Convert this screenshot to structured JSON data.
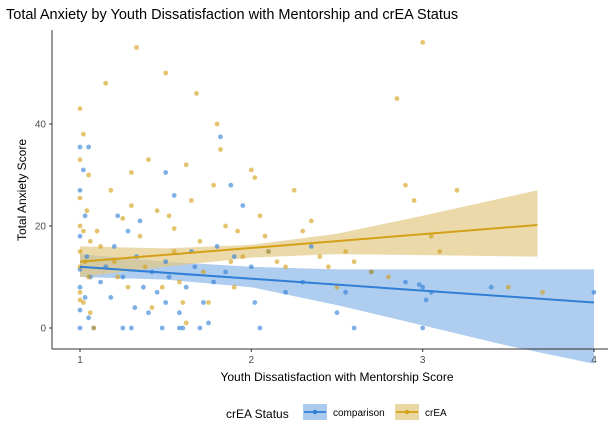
{
  "chart_data": {
    "type": "scatter",
    "title": "Total Anxiety by Youth Dissatisfaction with Mentorship and crEA Status",
    "xlabel": "Youth Dissatisfaction with Mentorship Score",
    "ylabel": "Total Anxiety Score",
    "xlim": [
      0.85,
      4.05
    ],
    "ylim": [
      -3,
      60
    ],
    "xticks": [
      1,
      2,
      3,
      4
    ],
    "yticks": [
      0,
      20,
      40
    ],
    "grid": false,
    "legend": {
      "title": "crEA Status",
      "position": "bottom"
    },
    "series": [
      {
        "name": "comparison",
        "color": "#2f7fd6",
        "points": [
          [
            1.0,
            35.5
          ],
          [
            1.02,
            31.0
          ],
          [
            1.05,
            35.5
          ],
          [
            1.0,
            27.0
          ],
          [
            1.03,
            22.0
          ],
          [
            1.0,
            18.0
          ],
          [
            1.04,
            14.0
          ],
          [
            1.0,
            11.5
          ],
          [
            1.06,
            10.0
          ],
          [
            1.0,
            8.0
          ],
          [
            1.03,
            6.0
          ],
          [
            1.0,
            3.5
          ],
          [
            1.05,
            2.0
          ],
          [
            1.0,
            0.0
          ],
          [
            1.08,
            0.0
          ],
          [
            1.12,
            9.0
          ],
          [
            1.15,
            12.0
          ],
          [
            1.18,
            6.0
          ],
          [
            1.2,
            16.0
          ],
          [
            1.22,
            22.0
          ],
          [
            1.25,
            10.0
          ],
          [
            1.28,
            19.0
          ],
          [
            1.3,
            0.0
          ],
          [
            1.32,
            4.0
          ],
          [
            1.33,
            14.0
          ],
          [
            1.35,
            21.0
          ],
          [
            1.37,
            8.0
          ],
          [
            1.4,
            3.0
          ],
          [
            1.42,
            11.0
          ],
          [
            1.45,
            7.0
          ],
          [
            1.48,
            0.0
          ],
          [
            1.5,
            5.0
          ],
          [
            1.52,
            10.0
          ],
          [
            1.5,
            13.0
          ],
          [
            1.55,
            26.0
          ],
          [
            1.58,
            3.0
          ],
          [
            1.6,
            0.0
          ],
          [
            1.62,
            8.0
          ],
          [
            1.65,
            15.0
          ],
          [
            1.67,
            12.0
          ],
          [
            1.7,
            0.0
          ],
          [
            1.72,
            5.0
          ],
          [
            1.75,
            1.0
          ],
          [
            1.78,
            9.0
          ],
          [
            1.8,
            16.0
          ],
          [
            1.82,
            37.5
          ],
          [
            1.85,
            11.0
          ],
          [
            1.88,
            28.0
          ],
          [
            1.9,
            14.0
          ],
          [
            1.95,
            24.0
          ],
          [
            2.0,
            12.0
          ],
          [
            2.02,
            5.0
          ],
          [
            2.05,
            0.0
          ],
          [
            2.1,
            15.0
          ],
          [
            2.2,
            7.0
          ],
          [
            2.3,
            9.0
          ],
          [
            2.35,
            16.0
          ],
          [
            2.5,
            3.0
          ],
          [
            2.55,
            7.0
          ],
          [
            2.6,
            0.0
          ],
          [
            2.7,
            11.0
          ],
          [
            2.9,
            9.0
          ],
          [
            3.0,
            8.0
          ],
          [
            3.02,
            5.5
          ],
          [
            3.05,
            7.0
          ],
          [
            3.0,
            0.0
          ],
          [
            2.98,
            8.5
          ],
          [
            3.4,
            8.0
          ],
          [
            4.0,
            7.0
          ],
          [
            1.5,
            30.5
          ],
          [
            1.58,
            0.0
          ],
          [
            1.25,
            0.0
          ]
        ],
        "fit": {
          "x": [
            1,
            4
          ],
          "y": [
            12.0,
            5.0
          ]
        },
        "band": {
          "x": [
            1,
            1.5,
            2,
            2.5,
            3,
            3.5,
            4
          ],
          "lower": [
            10.0,
            9.5,
            8.0,
            4.5,
            0.5,
            -3.5,
            -7.0
          ],
          "upper": [
            14.5,
            13.0,
            12.0,
            11.5,
            11.5,
            11.5,
            11.5
          ]
        }
      },
      {
        "name": "crEA",
        "color": "#d4a017",
        "points": [
          [
            1.0,
            43.0
          ],
          [
            1.02,
            38.0
          ],
          [
            1.0,
            33.0
          ],
          [
            1.05,
            30.0
          ],
          [
            1.0,
            25.5
          ],
          [
            1.04,
            23.0
          ],
          [
            1.0,
            20.0
          ],
          [
            1.02,
            19.0
          ],
          [
            1.06,
            17.0
          ],
          [
            1.0,
            15.0
          ],
          [
            1.03,
            13.0
          ],
          [
            1.0,
            12.0
          ],
          [
            1.05,
            10.0
          ],
          [
            1.0,
            7.0
          ],
          [
            1.02,
            5.0
          ],
          [
            1.06,
            3.0
          ],
          [
            1.08,
            0.0
          ],
          [
            1.1,
            19.0
          ],
          [
            1.12,
            16.0
          ],
          [
            1.15,
            48.0
          ],
          [
            1.18,
            27.0
          ],
          [
            1.2,
            13.0
          ],
          [
            1.22,
            10.0
          ],
          [
            1.25,
            21.5
          ],
          [
            1.28,
            8.0
          ],
          [
            1.3,
            30.5
          ],
          [
            1.33,
            55.0
          ],
          [
            1.35,
            18.0
          ],
          [
            1.38,
            12.0
          ],
          [
            1.4,
            33.0
          ],
          [
            1.42,
            4.0
          ],
          [
            1.45,
            23.0
          ],
          [
            1.48,
            8.0
          ],
          [
            1.5,
            50.0
          ],
          [
            1.52,
            22.0
          ],
          [
            1.55,
            15.0
          ],
          [
            1.58,
            9.0
          ],
          [
            1.6,
            5.0
          ],
          [
            1.62,
            32.0
          ],
          [
            1.65,
            25.0
          ],
          [
            1.68,
            46.0
          ],
          [
            1.7,
            17.0
          ],
          [
            1.72,
            11.0
          ],
          [
            1.75,
            5.0
          ],
          [
            1.78,
            28.0
          ],
          [
            1.8,
            40.0
          ],
          [
            1.82,
            35.0
          ],
          [
            1.85,
            20.0
          ],
          [
            1.88,
            13.0
          ],
          [
            1.9,
            8.0
          ],
          [
            1.92,
            19.0
          ],
          [
            1.95,
            14.0
          ],
          [
            2.0,
            31.0
          ],
          [
            2.02,
            29.5
          ],
          [
            2.05,
            22.0
          ],
          [
            2.08,
            18.0
          ],
          [
            2.1,
            15.0
          ],
          [
            2.15,
            13.0
          ],
          [
            2.2,
            12.0
          ],
          [
            2.25,
            27.0
          ],
          [
            2.3,
            19.0
          ],
          [
            2.35,
            21.0
          ],
          [
            2.4,
            14.0
          ],
          [
            2.45,
            12.0
          ],
          [
            2.5,
            8.0
          ],
          [
            2.55,
            15.0
          ],
          [
            2.6,
            13.0
          ],
          [
            2.7,
            11.0
          ],
          [
            2.8,
            10.0
          ],
          [
            2.85,
            45.0
          ],
          [
            2.9,
            28.0
          ],
          [
            2.95,
            25.0
          ],
          [
            3.0,
            56.0
          ],
          [
            3.05,
            18.0
          ],
          [
            3.1,
            15.0
          ],
          [
            3.2,
            27.0
          ],
          [
            3.5,
            8.0
          ],
          [
            3.7,
            7.0
          ],
          [
            1.62,
            1.0
          ],
          [
            1.3,
            24.0
          ],
          [
            1.55,
            19.5
          ],
          [
            1.0,
            5.5
          ]
        ],
        "fit": {
          "x": [
            1,
            3.67
          ],
          "y": [
            13.0,
            20.2
          ]
        },
        "band": {
          "x": [
            1,
            1.5,
            2,
            2.5,
            3,
            3.67
          ],
          "lower": [
            10.0,
            12.0,
            13.8,
            14.5,
            14.3,
            14.0
          ],
          "upper": [
            16.0,
            15.6,
            16.3,
            18.5,
            22.0,
            27.0
          ]
        }
      }
    ]
  }
}
